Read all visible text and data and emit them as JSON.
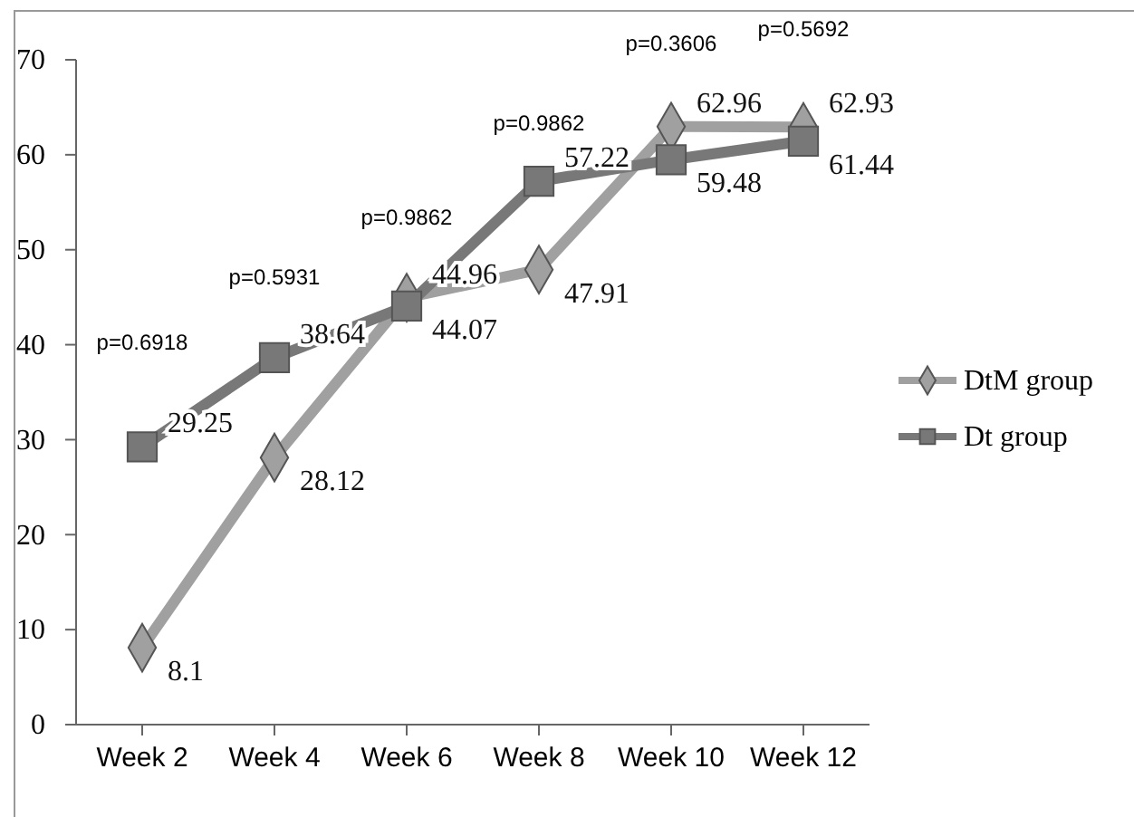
{
  "chart_data": {
    "type": "line",
    "categories": [
      "Week 2",
      "Week 4",
      "Week 6",
      "Week 8",
      "Week 10",
      "Week 12"
    ],
    "series": [
      {
        "name": "DtM group",
        "color": "#a0a0a0",
        "marker": "diamond",
        "values": [
          8.1,
          28.12,
          44.96,
          47.91,
          62.96,
          62.93
        ]
      },
      {
        "name": "Dt group",
        "color": "#787878",
        "marker": "square",
        "values": [
          29.25,
          38.64,
          44.07,
          57.22,
          59.48,
          61.44
        ]
      }
    ],
    "ylim": [
      0,
      70
    ],
    "yticks": [
      0,
      10,
      20,
      30,
      40,
      50,
      60,
      70
    ],
    "grid": false,
    "legend": "right",
    "data_labels": true,
    "annotations": [
      "p=0.6918",
      "p=0.5931",
      "p=0.9862",
      "p=0.9862",
      "p=0.3606",
      "p=0.5692"
    ]
  }
}
